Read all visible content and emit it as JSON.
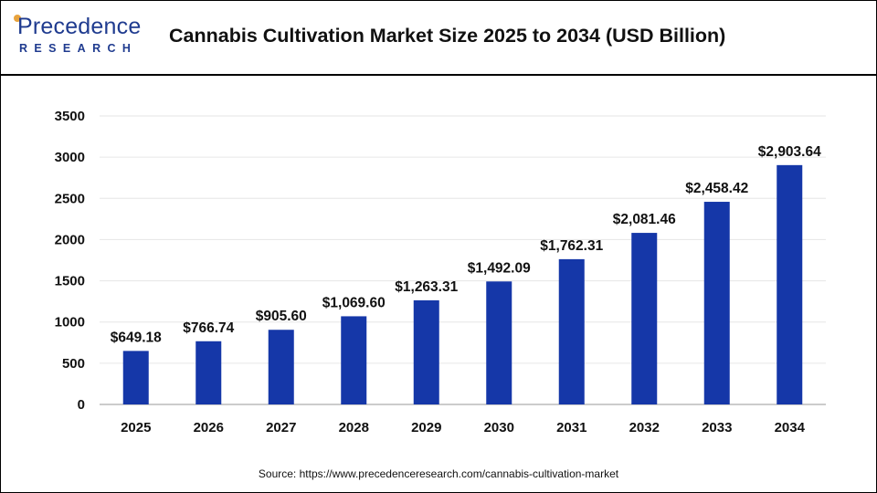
{
  "header": {
    "logo_word": "Precedence",
    "logo_sub": "RESEARCH",
    "title": "Cannabis Cultivation Market Size 2025 to 2034 (USD Billion)"
  },
  "source": "Source: https://www.precedenceresearch.com/cannabis-cultivation-market",
  "colors": {
    "bar": "#1537a8",
    "grid": "#e6e6e6",
    "axis": "#999999"
  },
  "chart_data": {
    "type": "bar",
    "title": "Cannabis Cultivation Market Size 2025 to 2034 (USD Billion)",
    "categories": [
      "2025",
      "2026",
      "2027",
      "2028",
      "2029",
      "2030",
      "2031",
      "2032",
      "2033",
      "2034"
    ],
    "values": [
      649.18,
      766.74,
      905.6,
      1069.6,
      1263.31,
      1492.09,
      1762.31,
      2081.46,
      2458.42,
      2903.64
    ],
    "labels": [
      "$649.18",
      "$766.74",
      "$905.60",
      "$1,069.60",
      "$1,263.31",
      "$1,492.09",
      "$1,762.31",
      "$2,081.46",
      "$2,458.42",
      "$2,903.64"
    ],
    "ylim": [
      0,
      3500
    ],
    "yticks": [
      0,
      500,
      1000,
      1500,
      2000,
      2500,
      3000,
      3500
    ],
    "xlabel": "",
    "ylabel": "",
    "grid": true
  }
}
